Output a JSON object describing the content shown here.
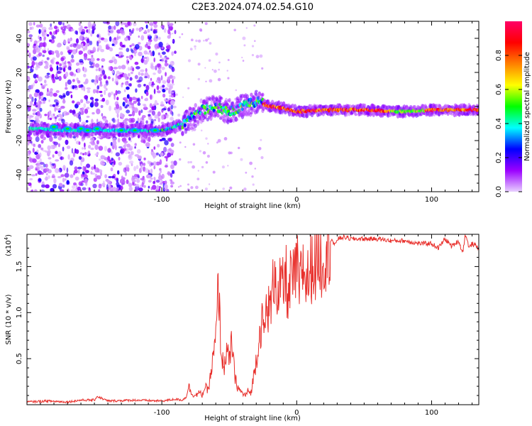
{
  "title": "C2E3.2024.074.02.54.G10",
  "chart_data": [
    {
      "type": "heatmap",
      "xlabel": "Height of straight line (km)",
      "ylabel": "Frequency (Hz)",
      "xlim": [
        -200,
        135
      ],
      "ylim": [
        -50,
        50
      ],
      "xticks": [
        -100,
        0,
        100
      ],
      "yticks": [
        -40,
        -20,
        0,
        20,
        40
      ],
      "grid": false,
      "ridge": {
        "x": [
          -190,
          -170,
          -150,
          -130,
          -110,
          -100,
          -90,
          -80,
          -70,
          -60,
          -50,
          -40,
          -30,
          -20,
          -10,
          0,
          20,
          50,
          80,
          100,
          130
        ],
        "y": [
          -13,
          -14,
          -14,
          -14,
          -14,
          -14,
          -12,
          -8,
          -2,
          0,
          -3,
          0,
          3,
          0,
          -1,
          -3,
          -2,
          -2,
          -3,
          -2,
          -2
        ]
      },
      "colorbar": {
        "label": "Normalized spectral amplitude",
        "range": [
          0,
          1
        ],
        "ticks": [
          "0.0",
          "0.2",
          "0.4",
          "0.6",
          "0.8"
        ],
        "colors": [
          "#e8d0ff",
          "#9b00ff",
          "#0000ff",
          "#00ffff",
          "#00ff00",
          "#ffff00",
          "#ff8000",
          "#ff0000",
          "#ff0066"
        ]
      }
    },
    {
      "type": "line",
      "xlabel": "Height of straight line (km)",
      "ylabel": "SNR (10 * v/v)",
      "yscale_label": "(x10",
      "yscale_exp": "4",
      "yscale_close": ")",
      "xlim": [
        -200,
        135
      ],
      "ylim": [
        0,
        1.85
      ],
      "xticks": [
        -100,
        0,
        100
      ],
      "yticks": [
        0.5,
        1.0,
        1.5
      ],
      "ytick_labels": [
        "0.5",
        "1.0",
        "1.5"
      ],
      "line_color": "#e8302c",
      "series": [
        {
          "x": [
            -200,
            -185,
            -170,
            -160,
            -150,
            -148,
            -140,
            -120,
            -100,
            -90,
            -85,
            -82,
            -80,
            -78,
            -75,
            -72,
            -70,
            -68,
            -66,
            -64,
            -62,
            -60,
            -58,
            -56,
            -54,
            -52,
            -50,
            -48,
            -46,
            -44,
            -42,
            -40,
            -38,
            -36,
            -34,
            -32,
            -30,
            -28,
            -26,
            -24,
            -22,
            -20,
            -18,
            -16,
            -14,
            -12,
            -10,
            -8,
            -6,
            -4,
            -2,
            0,
            2,
            4,
            6,
            8,
            10,
            12,
            14,
            16,
            18,
            20,
            22,
            24,
            26,
            28,
            30,
            35,
            40,
            50,
            60,
            70,
            80,
            90,
            100,
            105,
            110,
            115,
            120,
            123,
            125,
            128,
            130,
            135
          ],
          "y": [
            0.03,
            0.04,
            0.03,
            0.05,
            0.05,
            0.09,
            0.04,
            0.05,
            0.04,
            0.06,
            0.05,
            0.08,
            0.2,
            0.12,
            0.1,
            0.13,
            0.1,
            0.2,
            0.15,
            0.3,
            0.5,
            0.7,
            1.32,
            0.55,
            0.4,
            0.6,
            0.45,
            0.7,
            0.3,
            0.2,
            0.15,
            0.12,
            0.1,
            0.15,
            0.12,
            0.3,
            0.5,
            0.7,
            0.9,
            0.8,
            1.1,
            1.0,
            1.2,
            1.55,
            1.1,
            1.3,
            1.25,
            1.4,
            1.1,
            1.45,
            1.3,
            1.55,
            1.2,
            1.55,
            1.4,
            1.35,
            1.45,
            1.55,
            1.5,
            1.7,
            1.55,
            1.6,
            1.72,
            1.75,
            1.8,
            1.72,
            1.8,
            1.82,
            1.8,
            1.8,
            1.8,
            1.78,
            1.78,
            1.75,
            1.75,
            1.7,
            1.8,
            1.72,
            1.78,
            1.65,
            1.85,
            1.7,
            1.75,
            1.7
          ]
        }
      ]
    }
  ]
}
